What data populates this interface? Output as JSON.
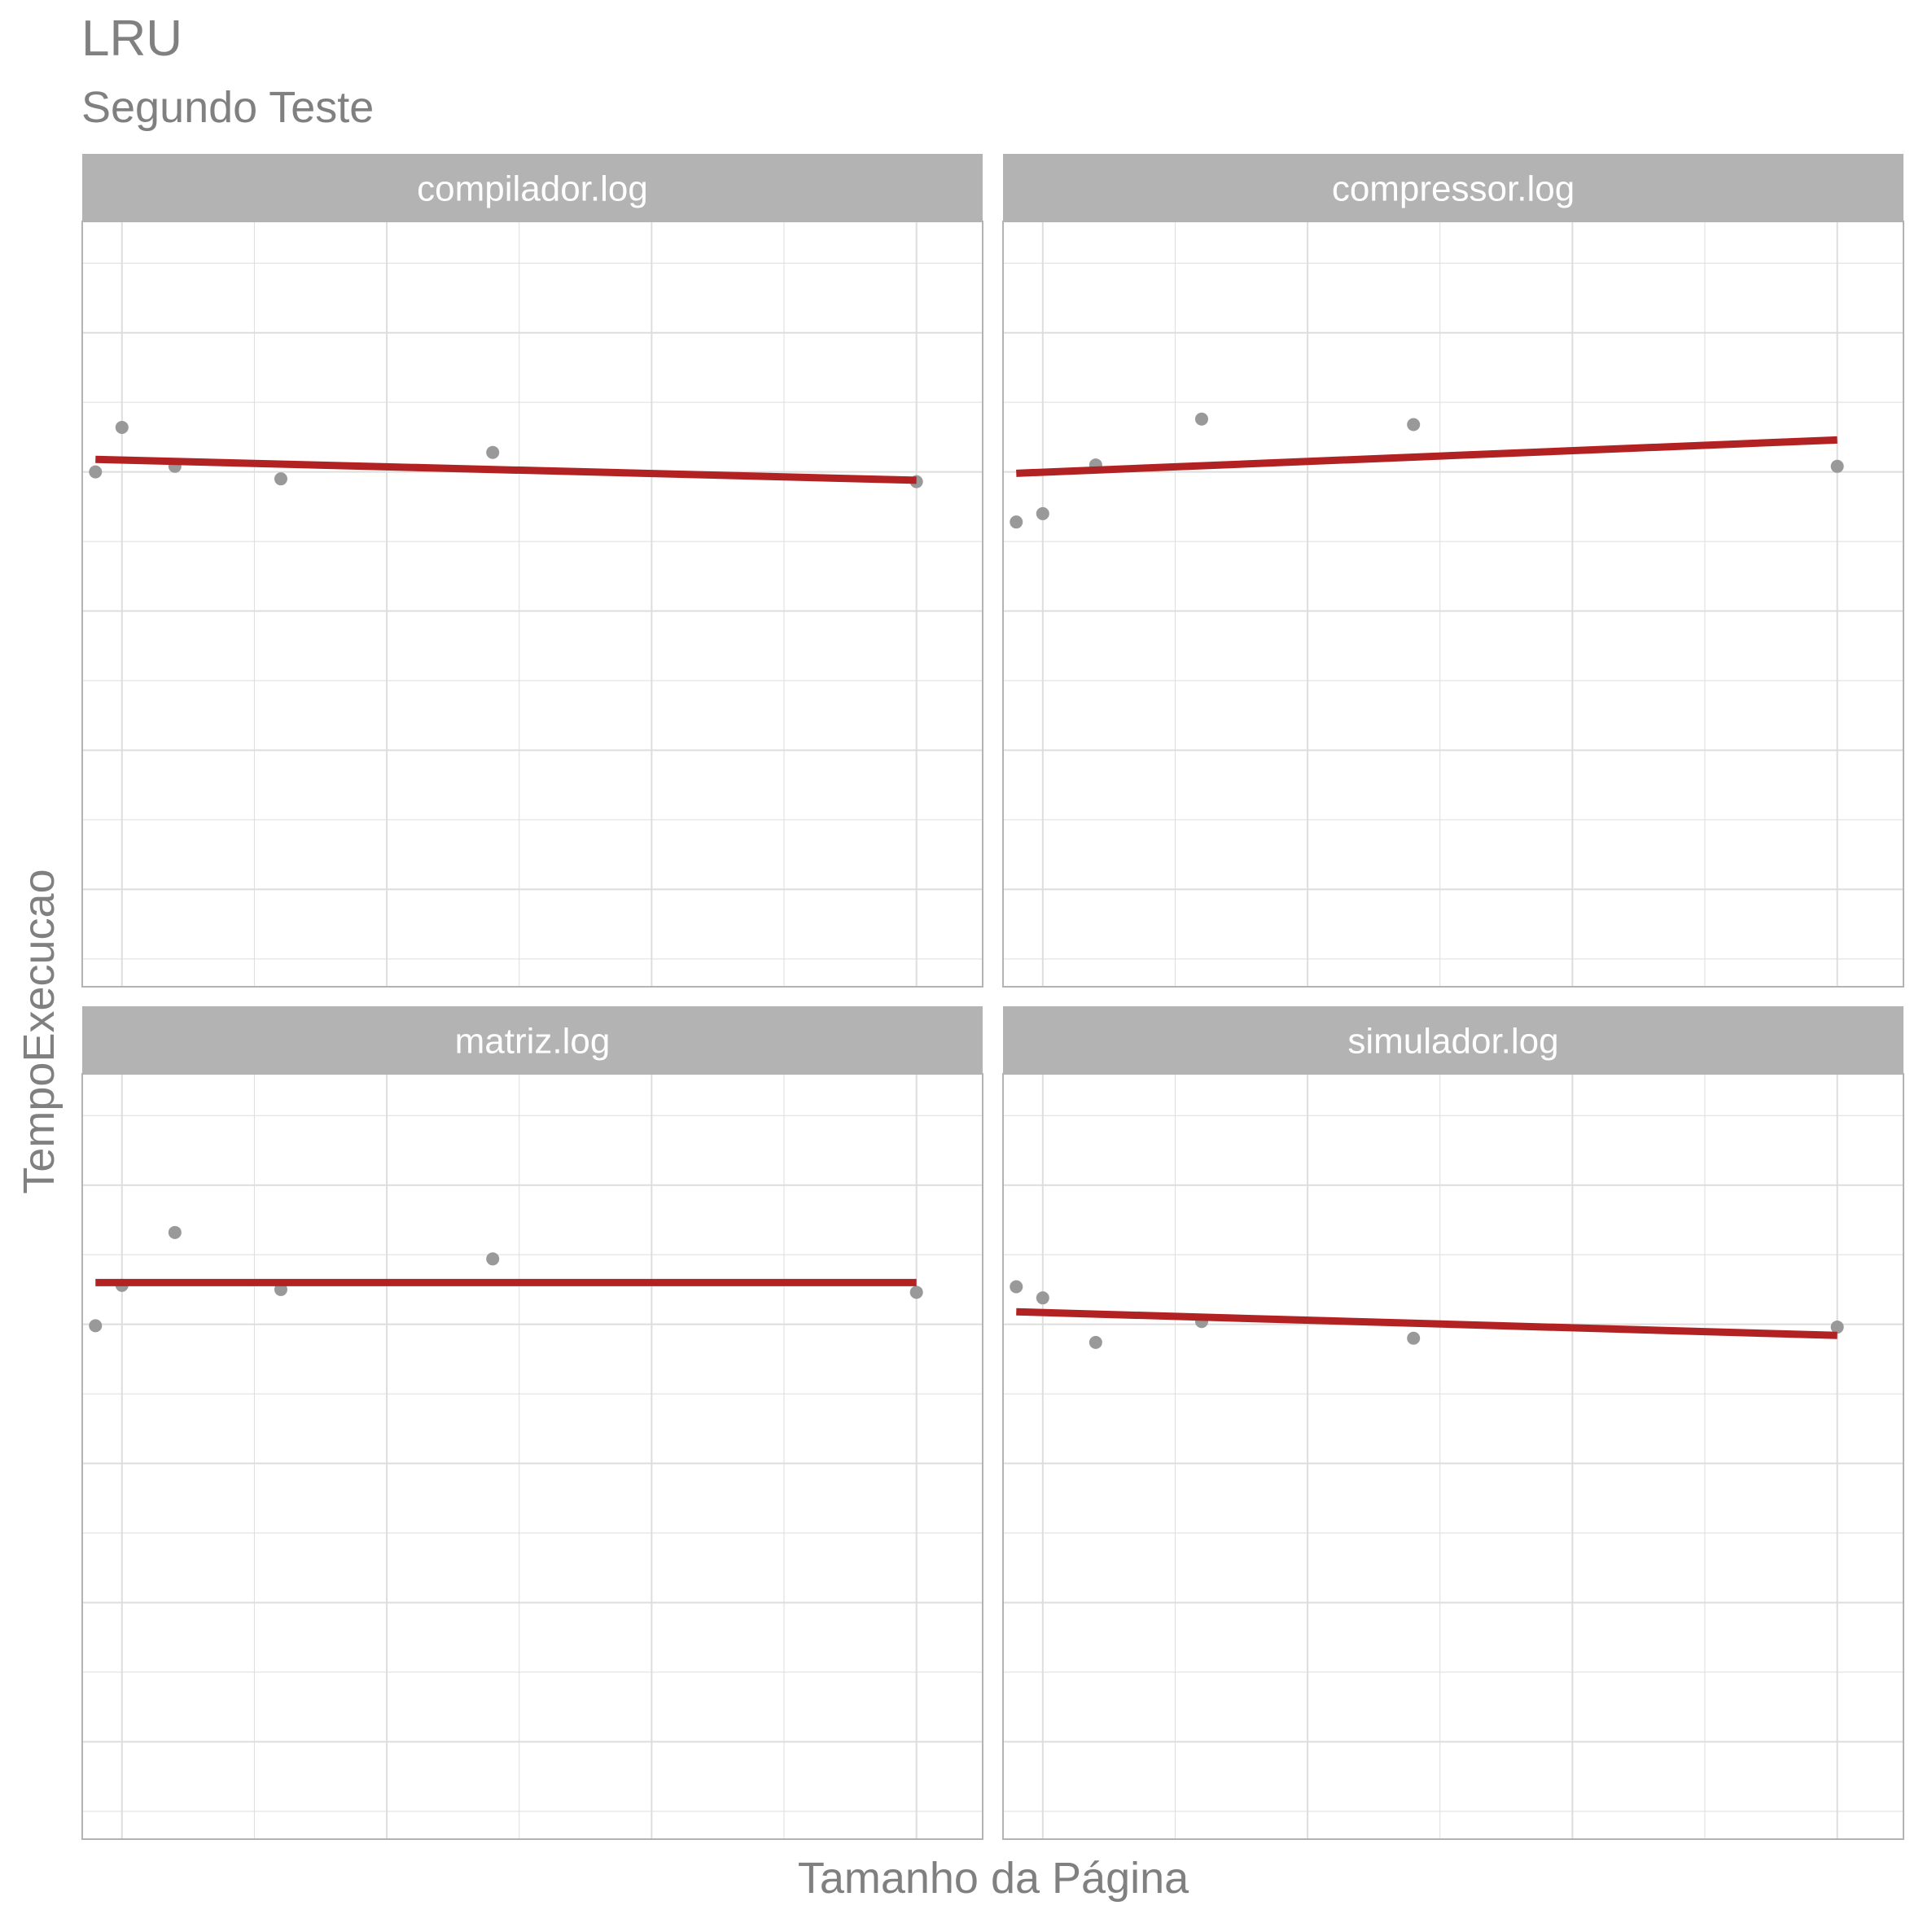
{
  "chart_data": {
    "type": "scatter",
    "title": "LRU",
    "subtitle": "Segundo Teste",
    "xlabel": "Tamanho da Página",
    "ylabel": "TempoExecucao",
    "facet_layout": "2x2",
    "axis_tick_labels_shown": false,
    "grid": true,
    "colors": {
      "points": "#999999",
      "trend_line": "#b22222",
      "strip": "#b3b3b3",
      "strip_text": "#ffffff",
      "grid": "#dddddd",
      "panel_border": "#b3b3b3",
      "title": "#808080"
    },
    "xlim": [
      0.5,
      34.5
    ],
    "ylim": [
      0.3,
      5.8
    ],
    "panels": [
      {
        "label": "compilador.log",
        "points": [
          {
            "x": 1,
            "y": 4.0
          },
          {
            "x": 2,
            "y": 4.32
          },
          {
            "x": 4,
            "y": 4.04
          },
          {
            "x": 8,
            "y": 3.95
          },
          {
            "x": 16,
            "y": 4.14
          },
          {
            "x": 32,
            "y": 3.93
          }
        ],
        "trend": {
          "x": [
            1,
            32
          ],
          "y": [
            4.09,
            3.94
          ]
        }
      },
      {
        "label": "compressor.log",
        "points": [
          {
            "x": 1,
            "y": 3.64
          },
          {
            "x": 2,
            "y": 3.7
          },
          {
            "x": 4,
            "y": 4.05
          },
          {
            "x": 8,
            "y": 4.38
          },
          {
            "x": 16,
            "y": 4.34
          },
          {
            "x": 32,
            "y": 4.04
          }
        ],
        "trend": {
          "x": [
            1,
            32
          ],
          "y": [
            3.99,
            4.23
          ]
        }
      },
      {
        "label": "matriz.log",
        "points": [
          {
            "x": 1,
            "y": 3.99
          },
          {
            "x": 2,
            "y": 4.28
          },
          {
            "x": 4,
            "y": 4.66
          },
          {
            "x": 8,
            "y": 4.25
          },
          {
            "x": 16,
            "y": 4.47
          },
          {
            "x": 32,
            "y": 4.23
          }
        ],
        "trend": {
          "x": [
            1,
            32
          ],
          "y": [
            4.3,
            4.3
          ]
        }
      },
      {
        "label": "simulador.log",
        "points": [
          {
            "x": 1,
            "y": 4.27
          },
          {
            "x": 2,
            "y": 4.19
          },
          {
            "x": 4,
            "y": 3.87
          },
          {
            "x": 8,
            "y": 4.02
          },
          {
            "x": 16,
            "y": 3.9
          },
          {
            "x": 32,
            "y": 3.98
          }
        ],
        "trend": {
          "x": [
            1,
            32
          ],
          "y": [
            4.09,
            3.92
          ]
        }
      }
    ]
  }
}
